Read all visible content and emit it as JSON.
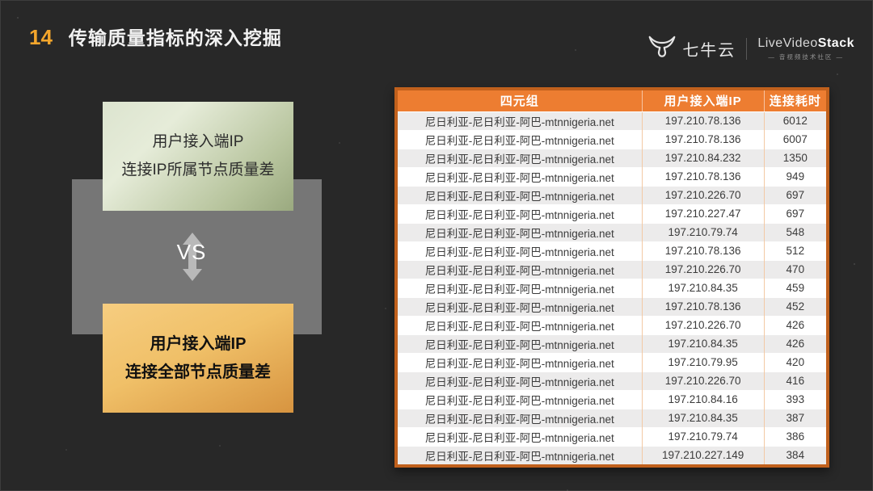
{
  "slide": {
    "number": "14",
    "title": "传输质量指标的深入挖掘"
  },
  "logos": {
    "qiniu_label": "七牛云",
    "lvs_light": "LiveVideo",
    "lvs_bold": "Stack",
    "lvs_tagline": "— 音视频技术社区 —"
  },
  "diagram": {
    "top_box_line1": "用户接入端IP",
    "top_box_line2": "连接IP所属节点质量差",
    "vs_label": "VS",
    "bottom_box_line1": "用户接入端IP",
    "bottom_box_line2": "连接全部节点质量差"
  },
  "table": {
    "headers": [
      "四元组",
      "用户接入端IP",
      "连接耗时"
    ],
    "rows": [
      {
        "quad": "尼日利亚-尼日利亚-阿巴-mtnnigeria.net",
        "ip": "197.210.78.136",
        "time": "6012"
      },
      {
        "quad": "尼日利亚-尼日利亚-阿巴-mtnnigeria.net",
        "ip": "197.210.78.136",
        "time": "6007"
      },
      {
        "quad": "尼日利亚-尼日利亚-阿巴-mtnnigeria.net",
        "ip": "197.210.84.232",
        "time": "1350"
      },
      {
        "quad": "尼日利亚-尼日利亚-阿巴-mtnnigeria.net",
        "ip": "197.210.78.136",
        "time": "949"
      },
      {
        "quad": "尼日利亚-尼日利亚-阿巴-mtnnigeria.net",
        "ip": "197.210.226.70",
        "time": "697"
      },
      {
        "quad": "尼日利亚-尼日利亚-阿巴-mtnnigeria.net",
        "ip": "197.210.227.47",
        "time": "697"
      },
      {
        "quad": "尼日利亚-尼日利亚-阿巴-mtnnigeria.net",
        "ip": "197.210.79.74",
        "time": "548"
      },
      {
        "quad": "尼日利亚-尼日利亚-阿巴-mtnnigeria.net",
        "ip": "197.210.78.136",
        "time": "512"
      },
      {
        "quad": "尼日利亚-尼日利亚-阿巴-mtnnigeria.net",
        "ip": "197.210.226.70",
        "time": "470"
      },
      {
        "quad": "尼日利亚-尼日利亚-阿巴-mtnnigeria.net",
        "ip": "197.210.84.35",
        "time": "459"
      },
      {
        "quad": "尼日利亚-尼日利亚-阿巴-mtnnigeria.net",
        "ip": "197.210.78.136",
        "time": "452"
      },
      {
        "quad": "尼日利亚-尼日利亚-阿巴-mtnnigeria.net",
        "ip": "197.210.226.70",
        "time": "426"
      },
      {
        "quad": "尼日利亚-尼日利亚-阿巴-mtnnigeria.net",
        "ip": "197.210.84.35",
        "time": "426"
      },
      {
        "quad": "尼日利亚-尼日利亚-阿巴-mtnnigeria.net",
        "ip": "197.210.79.95",
        "time": "420"
      },
      {
        "quad": "尼日利亚-尼日利亚-阿巴-mtnnigeria.net",
        "ip": "197.210.226.70",
        "time": "416"
      },
      {
        "quad": "尼日利亚-尼日利亚-阿巴-mtnnigeria.net",
        "ip": "197.210.84.16",
        "time": "393"
      },
      {
        "quad": "尼日利亚-尼日利亚-阿巴-mtnnigeria.net",
        "ip": "197.210.84.35",
        "time": "387"
      },
      {
        "quad": "尼日利亚-尼日利亚-阿巴-mtnnigeria.net",
        "ip": "197.210.79.74",
        "time": "386"
      },
      {
        "quad": "尼日利亚-尼日利亚-阿巴-mtnnigeria.net",
        "ip": "197.210.227.149",
        "time": "384"
      }
    ]
  },
  "colors": {
    "header_orange": "#ED7D31",
    "table_border": "#C0601C",
    "row_alt_gray": "#ECEBEB",
    "slide_number": "#F4A62C",
    "green_box_start": "#DDE5D0",
    "green_box_end": "#9AA97F",
    "gold_box_start": "#F6CD80",
    "gold_box_end": "#D79440",
    "panel_gray": "#767676"
  }
}
